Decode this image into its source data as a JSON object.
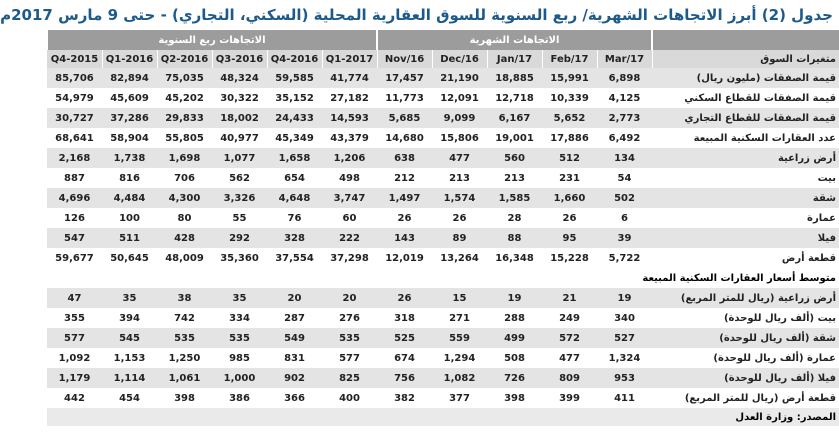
{
  "title": "جدول (2) أبرز الاتجاهات الشهرية/ ربع السنوية للسوق العقارية المحلية (السكني، التجاري) - حتى 9 مارس 2017م",
  "header": {
    "monthly": "الاتجاهات الشهرية",
    "quarterly": "الاتجاهات ربع السنوية",
    "label": "متغيرات السوق",
    "monthly_columns": [
      "Mar/17",
      "Feb/17",
      "Jan/17",
      "Dec/16",
      "Nov/16"
    ],
    "quarterly_columns": [
      "2017-Q1",
      "2016-Q4",
      "2016-Q3",
      "2016-Q2",
      "2016-Q1",
      "2015-Q4"
    ]
  },
  "sections": [
    {
      "rows": [
        {
          "label": "قيمة الصفقات (مليون ريال)",
          "values": [
            "6,898",
            "15,991",
            "18,885",
            "21,190",
            "17,457",
            "41,774",
            "59,585",
            "48,324",
            "75,035",
            "82,894",
            "85,706"
          ]
        },
        {
          "label": "قيمة الصفقات للقطاع السكني",
          "values": [
            "4,125",
            "10,339",
            "12,718",
            "12,091",
            "11,773",
            "27,182",
            "35,152",
            "30,322",
            "45,202",
            "45,609",
            "54,979"
          ]
        },
        {
          "label": "قيمة الصفقات للقطاع التجاري",
          "values": [
            "2,773",
            "5,652",
            "6,167",
            "9,099",
            "5,685",
            "14,593",
            "24,433",
            "18,002",
            "29,833",
            "37,286",
            "30,727"
          ]
        },
        {
          "label": "عدد العقارات السكنية المبيعة",
          "values": [
            "6,492",
            "17,886",
            "19,001",
            "15,806",
            "14,680",
            "43,379",
            "45,349",
            "40,977",
            "55,805",
            "58,904",
            "68,641"
          ]
        },
        {
          "label": "أرض زراعية",
          "values": [
            "134",
            "512",
            "560",
            "477",
            "638",
            "1,206",
            "1,658",
            "1,077",
            "1,698",
            "1,738",
            "2,168"
          ]
        },
        {
          "label": "بيت",
          "values": [
            "54",
            "231",
            "213",
            "213",
            "212",
            "498",
            "654",
            "562",
            "706",
            "816",
            "887"
          ]
        },
        {
          "label": "شقة",
          "values": [
            "502",
            "1,660",
            "1,585",
            "1,574",
            "1,497",
            "3,747",
            "4,648",
            "3,326",
            "4,300",
            "4,484",
            "4,696"
          ]
        },
        {
          "label": "عمارة",
          "values": [
            "6",
            "26",
            "28",
            "26",
            "26",
            "60",
            "76",
            "55",
            "80",
            "100",
            "126"
          ]
        },
        {
          "label": "فيلا",
          "values": [
            "39",
            "95",
            "88",
            "89",
            "143",
            "222",
            "328",
            "292",
            "428",
            "511",
            "547"
          ]
        },
        {
          "label": "قطعة أرض",
          "values": [
            "5,722",
            "15,228",
            "16,348",
            "13,264",
            "12,019",
            "37,298",
            "37,554",
            "35,360",
            "48,009",
            "50,645",
            "59,677"
          ]
        }
      ]
    },
    {
      "title": "متوسط أسعار العقارات السكنية المبيعة",
      "rows": [
        {
          "label": "أرض زراعية (ريال للمتر المربع)",
          "values": [
            "19",
            "21",
            "19",
            "15",
            "26",
            "20",
            "20",
            "35",
            "38",
            "35",
            "47"
          ]
        },
        {
          "label": "بيت (ألف ريال للوحدة)",
          "values": [
            "340",
            "249",
            "288",
            "271",
            "318",
            "276",
            "287",
            "334",
            "742",
            "394",
            "355"
          ]
        },
        {
          "label": "شقة (ألف ريال للوحدة)",
          "values": [
            "527",
            "572",
            "499",
            "559",
            "525",
            "535",
            "549",
            "535",
            "535",
            "545",
            "577"
          ]
        },
        {
          "label": "عمارة (ألف ريال للوحدة)",
          "values": [
            "1,324",
            "477",
            "508",
            "1,294",
            "674",
            "577",
            "831",
            "985",
            "1,250",
            "1,153",
            "1,092"
          ]
        },
        {
          "label": "فيلا (ألف ريال للوحدة)",
          "values": [
            "953",
            "809",
            "726",
            "1,082",
            "756",
            "825",
            "902",
            "1,000",
            "1,061",
            "1,114",
            "1,179"
          ]
        },
        {
          "label": "قطعة أرض (ريال للمتر المربع)",
          "values": [
            "411",
            "399",
            "398",
            "377",
            "382",
            "400",
            "366",
            "386",
            "398",
            "454",
            "442"
          ]
        }
      ]
    }
  ],
  "source": "المصدر: وزارة العدل"
}
